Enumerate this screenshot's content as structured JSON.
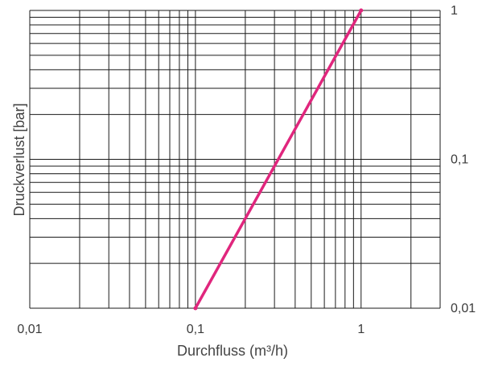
{
  "chart_data": {
    "type": "line",
    "title": "",
    "xlabel": "Durchfluss (m³/h)",
    "ylabel": "Druckverlust [bar]",
    "x_scale": "log",
    "y_scale": "log",
    "xlim": [
      0.01,
      3
    ],
    "ylim": [
      0.01,
      1
    ],
    "grid": true,
    "x_ticks": [
      {
        "value": 0.01,
        "label": "0,01"
      },
      {
        "value": 0.1,
        "label": "0,1"
      },
      {
        "value": 1,
        "label": "1"
      }
    ],
    "y_ticks": [
      {
        "value": 1,
        "label": "1"
      },
      {
        "value": 0.1,
        "label": "0,1"
      },
      {
        "value": 0.01,
        "label": "0,01"
      }
    ],
    "series": [
      {
        "color": "#e0267d",
        "x": [
          0.1,
          1
        ],
        "y": [
          0.01,
          1
        ]
      }
    ],
    "colors": {
      "grid": "#1a1a1a",
      "line": "#e0267d",
      "text": "#3a3a3a"
    }
  }
}
